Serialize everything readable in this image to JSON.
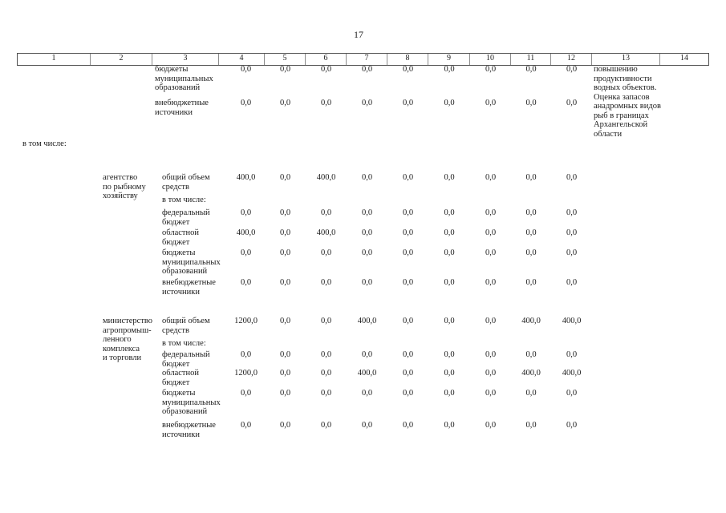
{
  "page_number": "17",
  "table": {
    "header_columns": [
      "1",
      "2",
      "3",
      "4",
      "5",
      "6",
      "7",
      "8",
      "9",
      "10",
      "11",
      "12",
      "13",
      "14"
    ],
    "rows": [
      {
        "col3_lines": [
          "бюджеты",
          "муниципальных",
          "образований"
        ],
        "values": [
          "0,0",
          "0,0",
          "0,0",
          "0,0",
          "0,0",
          "0,0",
          "0,0",
          "0,0",
          "0,0"
        ],
        "col13_lines": [
          "повышению",
          "продуктивности",
          "водных объектов.",
          "Оценка запасов",
          "анадромных видов",
          "рыб в границах",
          "Архангельской",
          "области"
        ]
      },
      {
        "col3_lines": [
          "внебюджетные",
          "источники"
        ],
        "values": [
          "0,0",
          "0,0",
          "0,0",
          "0,0",
          "0,0",
          "0,0",
          "0,0",
          "0,0",
          "0,0"
        ]
      },
      {
        "col1": "в том числе:"
      },
      {
        "col2_lines": [
          "агентство",
          "по рыбному",
          "хозяйству"
        ],
        "col3_lines": [
          "общий объем",
          "средств"
        ],
        "values": [
          "400,0",
          "0,0",
          "400,0",
          "0,0",
          "0,0",
          "0,0",
          "0,0",
          "0,0",
          "0,0"
        ]
      },
      {
        "col3_lines": [
          "в том числе:"
        ]
      },
      {
        "col3_lines": [
          "федеральный",
          "бюджет"
        ],
        "values": [
          "0,0",
          "0,0",
          "0,0",
          "0,0",
          "0,0",
          "0,0",
          "0,0",
          "0,0",
          "0,0"
        ]
      },
      {
        "col3_lines": [
          "областной",
          "бюджет"
        ],
        "values": [
          "400,0",
          "0,0",
          "400,0",
          "0,0",
          "0,0",
          "0,0",
          "0,0",
          "0,0",
          "0,0"
        ]
      },
      {
        "col3_lines": [
          "бюджеты",
          "муниципальных",
          "образований"
        ],
        "values": [
          "0,0",
          "0,0",
          "0,0",
          "0,0",
          "0,0",
          "0,0",
          "0,0",
          "0,0",
          "0,0"
        ]
      },
      {
        "col3_lines": [
          "внебюджетные",
          "источники"
        ],
        "values": [
          "0,0",
          "0,0",
          "0,0",
          "0,0",
          "0,0",
          "0,0",
          "0,0",
          "0,0",
          "0,0"
        ]
      },
      {
        "col2_lines": [
          "министерство",
          "агропромыш-",
          "ленного",
          "комплекса",
          "и торговли"
        ],
        "col3_lines": [
          "общий объем",
          "средств"
        ],
        "values": [
          "1200,0",
          "0,0",
          "0,0",
          "400,0",
          "0,0",
          "0,0",
          "0,0",
          "400,0",
          "400,0"
        ]
      },
      {
        "col3_lines": [
          "в том числе:"
        ]
      },
      {
        "col3_lines": [
          "федеральный",
          "бюджет"
        ],
        "values": [
          "0,0",
          "0,0",
          "0,0",
          "0,0",
          "0,0",
          "0,0",
          "0,0",
          "0,0",
          "0,0"
        ]
      },
      {
        "col3_lines": [
          "областной",
          "бюджет"
        ],
        "values": [
          "1200,0",
          "0,0",
          "0,0",
          "400,0",
          "0,0",
          "0,0",
          "0,0",
          "400,0",
          "400,0"
        ]
      },
      {
        "col3_lines": [
          "бюджеты",
          "муниципальных",
          "образований"
        ],
        "values": [
          "0,0",
          "0,0",
          "0,0",
          "0,0",
          "0,0",
          "0,0",
          "0,0",
          "0,0",
          "0,0"
        ]
      },
      {
        "col3_lines": [
          "внебюджетные",
          "источники"
        ],
        "values": [
          "0,0",
          "0,0",
          "0,0",
          "0,0",
          "0,0",
          "0,0",
          "0,0",
          "0,0",
          "0,0"
        ]
      }
    ]
  }
}
